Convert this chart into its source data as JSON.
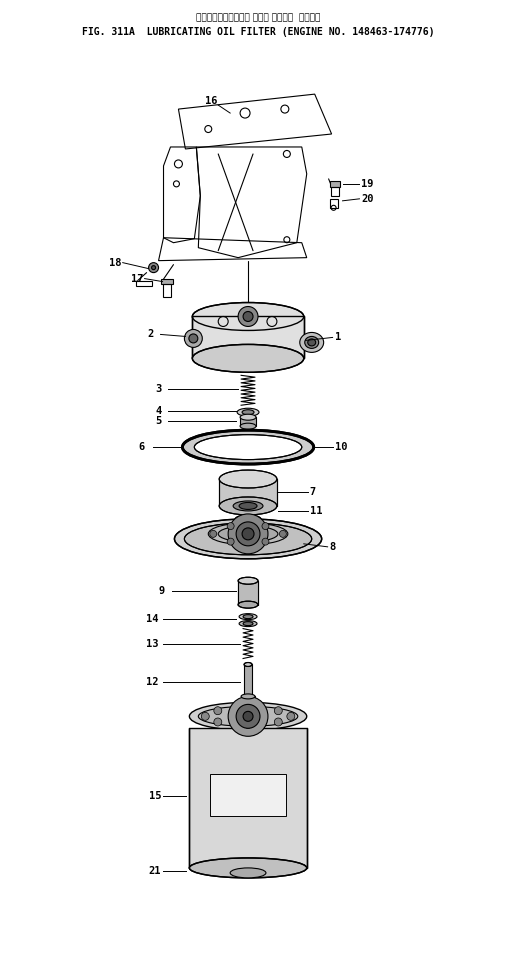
{
  "title_jp": "ルーブリケーティング オイル フィルタ  適用号機",
  "title_en": "FIG. 311A  LUBRICATING OIL FILTER (ENGINE NO. 148463-174776)",
  "bg_color": "#ffffff",
  "text_color": "#000000",
  "fig_width": 5.17,
  "fig_height": 9.74,
  "dpi": 100
}
